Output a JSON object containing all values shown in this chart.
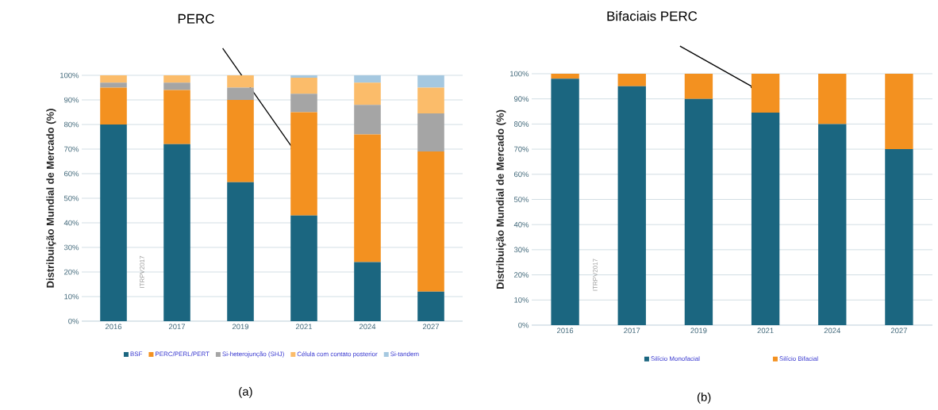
{
  "chart_data": [
    {
      "type": "bar",
      "stacked": true,
      "ylabel": "Distribuição Mundial de Mercado (%)",
      "categories": [
        "2016",
        "2017",
        "2019",
        "2021",
        "2024",
        "2027"
      ],
      "series": [
        {
          "name": "BSF",
          "color": "#1b6680",
          "values": [
            80,
            72,
            56.5,
            43,
            24,
            12
          ]
        },
        {
          "name": "PERC/PERL/PERT",
          "color": "#f39120",
          "values": [
            15,
            22,
            33.5,
            42,
            52,
            57
          ]
        },
        {
          "name": "Si-heterojunção (SHJ)",
          "color": "#a5a5a5",
          "values": [
            2,
            3,
            5,
            7.5,
            12,
            15.5
          ]
        },
        {
          "name": "Célula com contato posterior",
          "color": "#fbbc6a",
          "values": [
            3,
            3,
            5,
            6.5,
            9,
            10.5
          ]
        },
        {
          "name": "Si-tandem",
          "color": "#a5c8e0",
          "values": [
            0,
            0,
            0,
            1,
            3,
            5
          ]
        }
      ],
      "ylim": [
        0,
        100
      ],
      "yticks": [
        {
          "value": 0,
          "label": "0%"
        },
        {
          "value": 10,
          "label": "10%"
        },
        {
          "value": 20,
          "label": "20%"
        },
        {
          "value": 30,
          "label": "30%"
        },
        {
          "value": 40,
          "label": "40%"
        },
        {
          "value": 50,
          "label": "50%"
        },
        {
          "value": 60,
          "label": "60%"
        },
        {
          "value": 70,
          "label": "70%"
        },
        {
          "value": 80,
          "label": "80%"
        },
        {
          "value": 90,
          "label": "90%"
        },
        {
          "value": 100,
          "label": "100%"
        }
      ],
      "grid": "y",
      "legend": "bottom",
      "annotations": [
        "PERC",
        "ITRPV2017",
        "(a)"
      ]
    },
    {
      "type": "bar",
      "stacked": true,
      "ylabel": "Distribuição Mundial de Mercado (%)",
      "categories": [
        "2016",
        "2017",
        "2019",
        "2021",
        "2024",
        "2027"
      ],
      "series": [
        {
          "name": "Silício Monofacial",
          "color": "#1b6680",
          "values": [
            98,
            95,
            90,
            84.5,
            80,
            70
          ]
        },
        {
          "name": "Silício Bifacial",
          "color": "#f39120",
          "values": [
            2,
            5,
            10,
            15.5,
            20,
            30
          ]
        }
      ],
      "ylim": [
        0,
        100
      ],
      "yticks": [
        {
          "value": 0,
          "label": "0%"
        },
        {
          "value": 10,
          "label": "10%"
        },
        {
          "value": 20,
          "label": "20%"
        },
        {
          "value": 30,
          "label": "30%"
        },
        {
          "value": 40,
          "label": "40%"
        },
        {
          "value": 50,
          "label": "50%"
        },
        {
          "value": 60,
          "label": "60%"
        },
        {
          "value": 70,
          "label": "70%"
        },
        {
          "value": 80,
          "label": "80%"
        },
        {
          "value": 90,
          "label": "90%"
        },
        {
          "value": 100,
          "label": "100%"
        }
      ],
      "grid": "y",
      "legend": "bottom",
      "annotations": [
        "Bifaciais PERC",
        "ITRPV2017",
        "(b)"
      ]
    }
  ]
}
